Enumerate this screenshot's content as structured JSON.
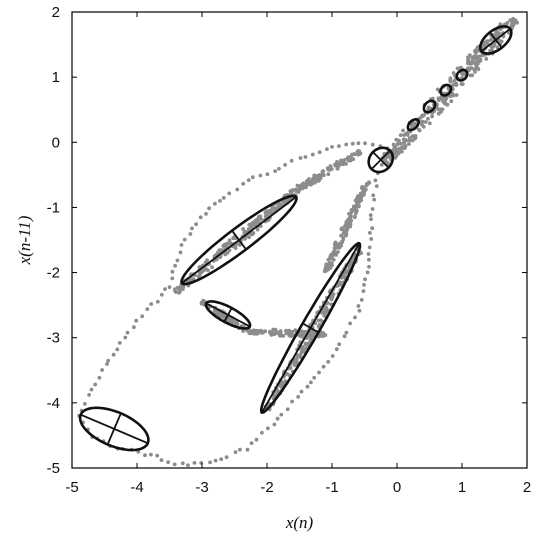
{
  "chart_data": {
    "type": "scatter",
    "xlabel": "x(n)",
    "ylabel": "x(n-11)",
    "xlim": [
      -5,
      2
    ],
    "ylim": [
      -5,
      2
    ],
    "xticks": [
      "-5",
      "-4",
      "-3",
      "-2",
      "-1",
      "0",
      "1",
      "2"
    ],
    "yticks": [
      "2",
      "1",
      "0",
      "-1",
      "-2",
      "-3",
      "-4",
      "-5"
    ],
    "grid": false,
    "colors": {
      "points": "#8c8c8c",
      "ellipses": "#111111",
      "axes": "#000000"
    },
    "trajectory": [
      [
        1.85,
        1.85
      ],
      [
        1.2,
        1.2
      ],
      [
        0.6,
        0.6
      ],
      [
        0.15,
        0.15
      ],
      [
        -0.05,
        -0.1
      ],
      [
        -0.25,
        -0.05
      ],
      [
        -0.6,
        0.0
      ],
      [
        -1.1,
        -0.1
      ],
      [
        -1.6,
        -0.3
      ],
      [
        -2.3,
        -0.6
      ],
      [
        -2.9,
        -1.0
      ],
      [
        -3.3,
        -1.6
      ],
      [
        -3.5,
        -2.2
      ],
      [
        -3.6,
        -2.35
      ],
      [
        -3.8,
        -2.5
      ],
      [
        -4.2,
        -3.0
      ],
      [
        -4.6,
        -3.6
      ],
      [
        -4.9,
        -4.2
      ],
      [
        -4.7,
        -4.5
      ],
      [
        -4.3,
        -4.7
      ],
      [
        -3.8,
        -4.8
      ],
      [
        -3.3,
        -4.95
      ],
      [
        -2.8,
        -4.9
      ],
      [
        -2.3,
        -4.7
      ],
      [
        -1.6,
        -4.0
      ],
      [
        -1.0,
        -3.3
      ],
      [
        -0.6,
        -2.6
      ],
      [
        -0.45,
        -1.9
      ],
      [
        -0.4,
        -1.3
      ],
      [
        -0.35,
        -0.8
      ],
      [
        -0.3,
        -0.45
      ],
      [
        -0.2,
        -0.25
      ],
      [
        0.1,
        0.1
      ],
      [
        0.7,
        0.75
      ],
      [
        1.3,
        1.35
      ],
      [
        1.85,
        1.85
      ]
    ],
    "dense_segments": [
      {
        "from": [
          -0.2,
          -0.3
        ],
        "to": [
          1.8,
          1.9
        ],
        "width": 0.14
      },
      {
        "from": [
          -3.4,
          -2.3
        ],
        "to": [
          -1.5,
          -0.7
        ],
        "width": 0.08
      },
      {
        "from": [
          -1.5,
          -0.7
        ],
        "to": [
          -0.55,
          -0.15
        ],
        "width": 0.06
      },
      {
        "from": [
          -2.0,
          -4.1
        ],
        "to": [
          -0.55,
          -1.6
        ],
        "width": 0.08
      },
      {
        "from": [
          -1.1,
          -2.0
        ],
        "to": [
          -0.45,
          -0.6
        ],
        "width": 0.06
      },
      {
        "from": [
          -3.0,
          -2.45
        ],
        "to": [
          -2.3,
          -2.9
        ],
        "width": 0.05
      },
      {
        "from": [
          -2.3,
          -2.9
        ],
        "to": [
          -1.1,
          -2.95
        ],
        "width": 0.05
      }
    ],
    "ellipses": [
      {
        "cx": 1.52,
        "cy": 1.57,
        "semi_major": 0.28,
        "semi_minor": 0.15,
        "angle_deg": 38,
        "cross": true
      },
      {
        "cx": 1.0,
        "cy": 1.03,
        "semi_major": 0.09,
        "semi_minor": 0.07,
        "angle_deg": 45,
        "cross": false
      },
      {
        "cx": 0.75,
        "cy": 0.8,
        "semi_major": 0.09,
        "semi_minor": 0.07,
        "angle_deg": 45,
        "cross": false
      },
      {
        "cx": 0.5,
        "cy": 0.55,
        "semi_major": 0.1,
        "semi_minor": 0.07,
        "angle_deg": 45,
        "cross": false
      },
      {
        "cx": 0.25,
        "cy": 0.27,
        "semi_major": 0.1,
        "semi_minor": 0.06,
        "angle_deg": 45,
        "cross": false
      },
      {
        "cx": -0.25,
        "cy": -0.27,
        "semi_major": 0.2,
        "semi_minor": 0.17,
        "angle_deg": 45,
        "cross": true
      },
      {
        "cx": -2.43,
        "cy": -1.5,
        "semi_major": 1.1,
        "semi_minor": 0.18,
        "angle_deg": 37,
        "cross": true
      },
      {
        "cx": -1.33,
        "cy": -2.85,
        "semi_major": 1.5,
        "semi_minor": 0.14,
        "angle_deg": 60,
        "cross": true
      },
      {
        "cx": -2.6,
        "cy": -2.65,
        "semi_major": 0.38,
        "semi_minor": 0.12,
        "angle_deg": -28,
        "cross": true
      },
      {
        "cx": -4.35,
        "cy": -4.4,
        "semi_major": 0.56,
        "semi_minor": 0.26,
        "angle_deg": -23,
        "cross": true
      }
    ]
  }
}
